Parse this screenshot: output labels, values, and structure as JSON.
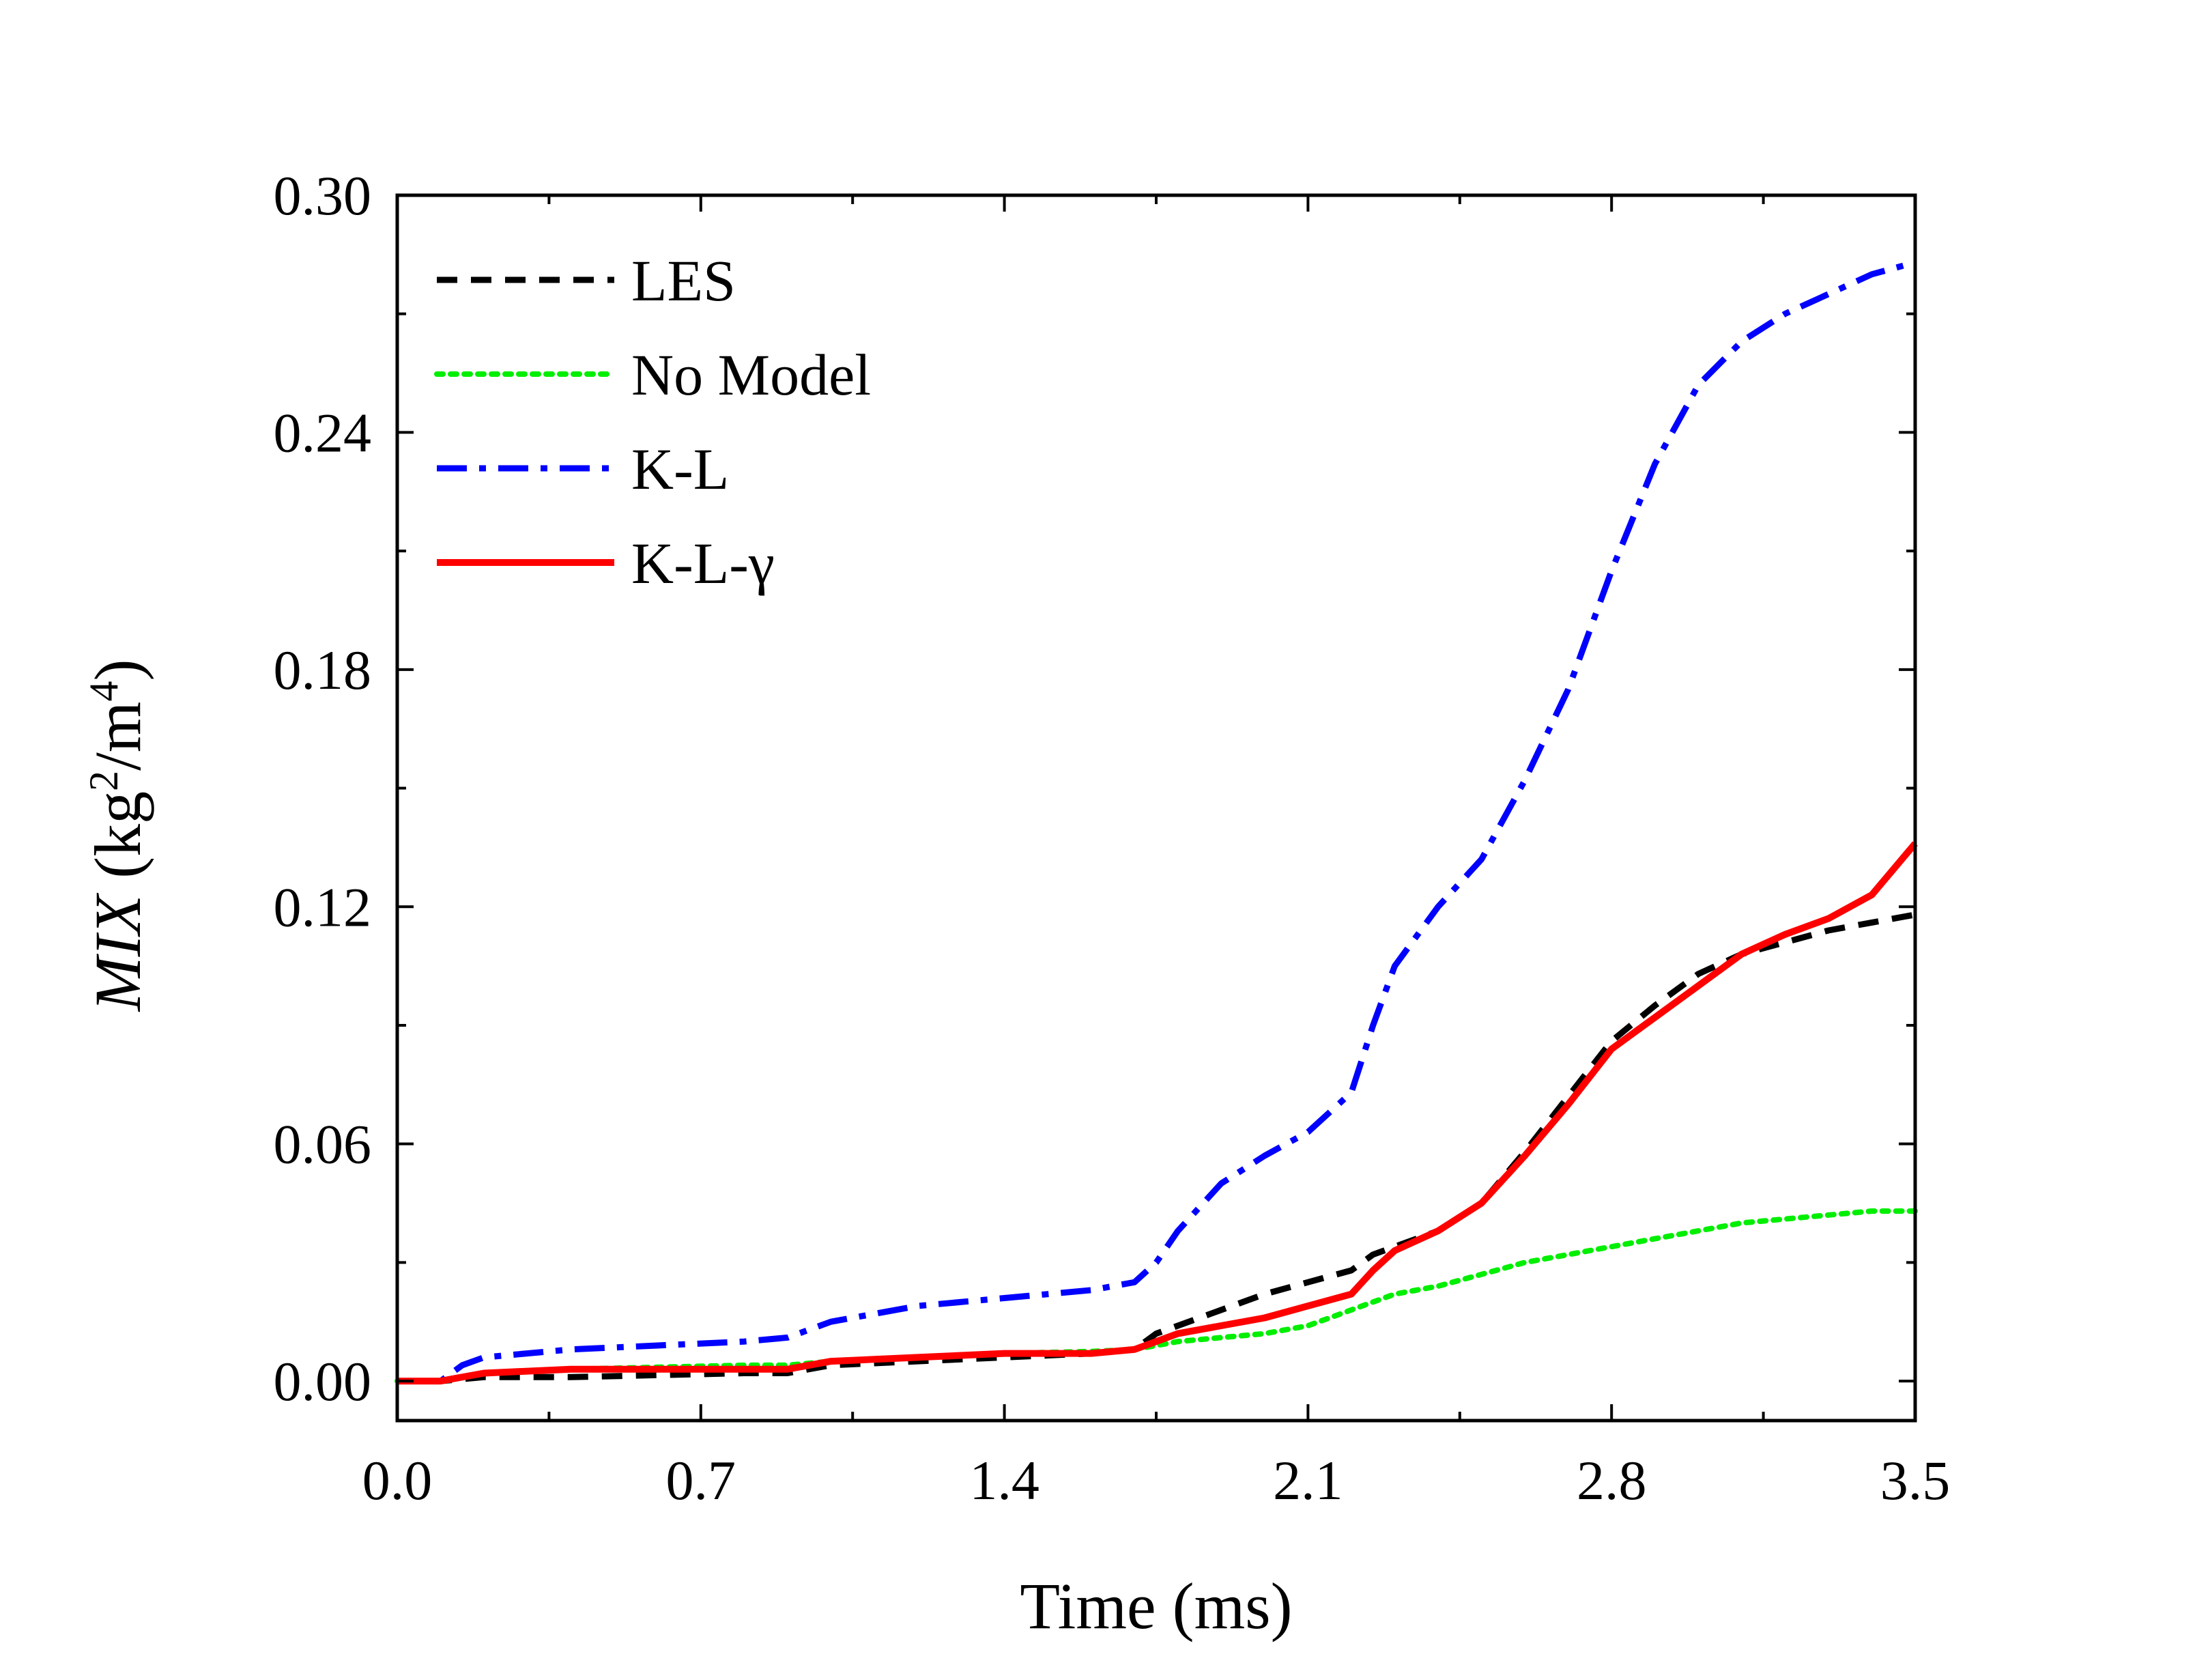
{
  "chart_data": {
    "type": "line",
    "title": "",
    "xlabel": "Time (ms)",
    "ylabel": {
      "var": "MIX",
      "unit_open": " (kg",
      "exp1": "2",
      "unit_mid": "/m",
      "exp2": "4",
      "unit_close": ")"
    },
    "xlim": [
      0,
      3.5
    ],
    "ylim": [
      -0.01,
      0.3
    ],
    "xticks": [
      0.0,
      0.7,
      1.4,
      2.1,
      2.8,
      3.5
    ],
    "xtick_labels": [
      "0.0",
      "0.7",
      "1.4",
      "2.1",
      "2.8",
      "3.5"
    ],
    "yticks": [
      0.0,
      0.06,
      0.12,
      0.18,
      0.24,
      0.3
    ],
    "ytick_labels": [
      "0.00",
      "0.06",
      "0.12",
      "0.18",
      "0.24",
      "0.30"
    ],
    "grid": false,
    "legend_position": "top-left",
    "series": [
      {
        "name": "LES",
        "color": "#000000",
        "style": "dashed",
        "x": [
          0.0,
          0.1,
          0.2,
          0.4,
          0.6,
          0.8,
          0.9,
          1.0,
          1.2,
          1.4,
          1.6,
          1.7,
          1.75,
          1.8,
          1.9,
          2.0,
          2.1,
          2.2,
          2.25,
          2.3,
          2.4,
          2.5,
          2.6,
          2.7,
          2.8,
          2.9,
          3.0,
          3.1,
          3.2,
          3.3,
          3.4,
          3.5
        ],
        "y": [
          0.0,
          0.0,
          0.001,
          0.001,
          0.0015,
          0.002,
          0.002,
          0.004,
          0.005,
          0.006,
          0.007,
          0.008,
          0.012,
          0.014,
          0.018,
          0.022,
          0.025,
          0.028,
          0.032,
          0.034,
          0.038,
          0.045,
          0.058,
          0.072,
          0.086,
          0.095,
          0.103,
          0.108,
          0.111,
          0.114,
          0.116,
          0.118
        ]
      },
      {
        "name": "No Model",
        "color": "#00ee00",
        "style": "dotted",
        "x": [
          0.0,
          0.1,
          0.2,
          0.4,
          0.6,
          0.8,
          0.9,
          1.0,
          1.2,
          1.4,
          1.6,
          1.7,
          1.8,
          1.9,
          2.0,
          2.1,
          2.2,
          2.3,
          2.4,
          2.5,
          2.6,
          2.7,
          2.8,
          2.9,
          3.0,
          3.1,
          3.2,
          3.3,
          3.4,
          3.5
        ],
        "y": [
          0.0,
          0.0,
          0.002,
          0.003,
          0.0035,
          0.004,
          0.004,
          0.005,
          0.006,
          0.007,
          0.0075,
          0.008,
          0.01,
          0.011,
          0.012,
          0.014,
          0.018,
          0.022,
          0.024,
          0.027,
          0.03,
          0.032,
          0.034,
          0.036,
          0.038,
          0.04,
          0.041,
          0.042,
          0.043,
          0.043
        ]
      },
      {
        "name": "K-L",
        "color": "#0000ff",
        "style": "dashdot",
        "x": [
          0.0,
          0.1,
          0.15,
          0.2,
          0.4,
          0.6,
          0.8,
          0.9,
          1.0,
          1.2,
          1.4,
          1.6,
          1.7,
          1.75,
          1.8,
          1.9,
          2.0,
          2.1,
          2.2,
          2.25,
          2.3,
          2.4,
          2.5,
          2.6,
          2.7,
          2.8,
          2.9,
          3.0,
          3.1,
          3.2,
          3.3,
          3.4,
          3.5
        ],
        "y": [
          0.0,
          0.0,
          0.004,
          0.006,
          0.008,
          0.009,
          0.01,
          0.011,
          0.015,
          0.019,
          0.021,
          0.023,
          0.025,
          0.03,
          0.038,
          0.05,
          0.057,
          0.063,
          0.073,
          0.09,
          0.105,
          0.12,
          0.132,
          0.152,
          0.175,
          0.205,
          0.232,
          0.252,
          0.263,
          0.27,
          0.275,
          0.28,
          0.283
        ]
      },
      {
        "name": "K-L-γ",
        "color": "#ff0000",
        "style": "solid",
        "x": [
          0.0,
          0.1,
          0.2,
          0.4,
          0.6,
          0.8,
          0.9,
          1.0,
          1.2,
          1.4,
          1.6,
          1.7,
          1.75,
          1.8,
          1.9,
          2.0,
          2.1,
          2.2,
          2.25,
          2.3,
          2.4,
          2.5,
          2.6,
          2.7,
          2.8,
          2.9,
          3.0,
          3.1,
          3.2,
          3.3,
          3.4,
          3.5
        ],
        "y": [
          0.0,
          0.0,
          0.002,
          0.003,
          0.003,
          0.003,
          0.003,
          0.005,
          0.006,
          0.007,
          0.007,
          0.008,
          0.01,
          0.012,
          0.014,
          0.016,
          0.019,
          0.022,
          0.028,
          0.033,
          0.038,
          0.045,
          0.057,
          0.07,
          0.084,
          0.092,
          0.1,
          0.108,
          0.113,
          0.117,
          0.123,
          0.136
        ]
      }
    ]
  }
}
